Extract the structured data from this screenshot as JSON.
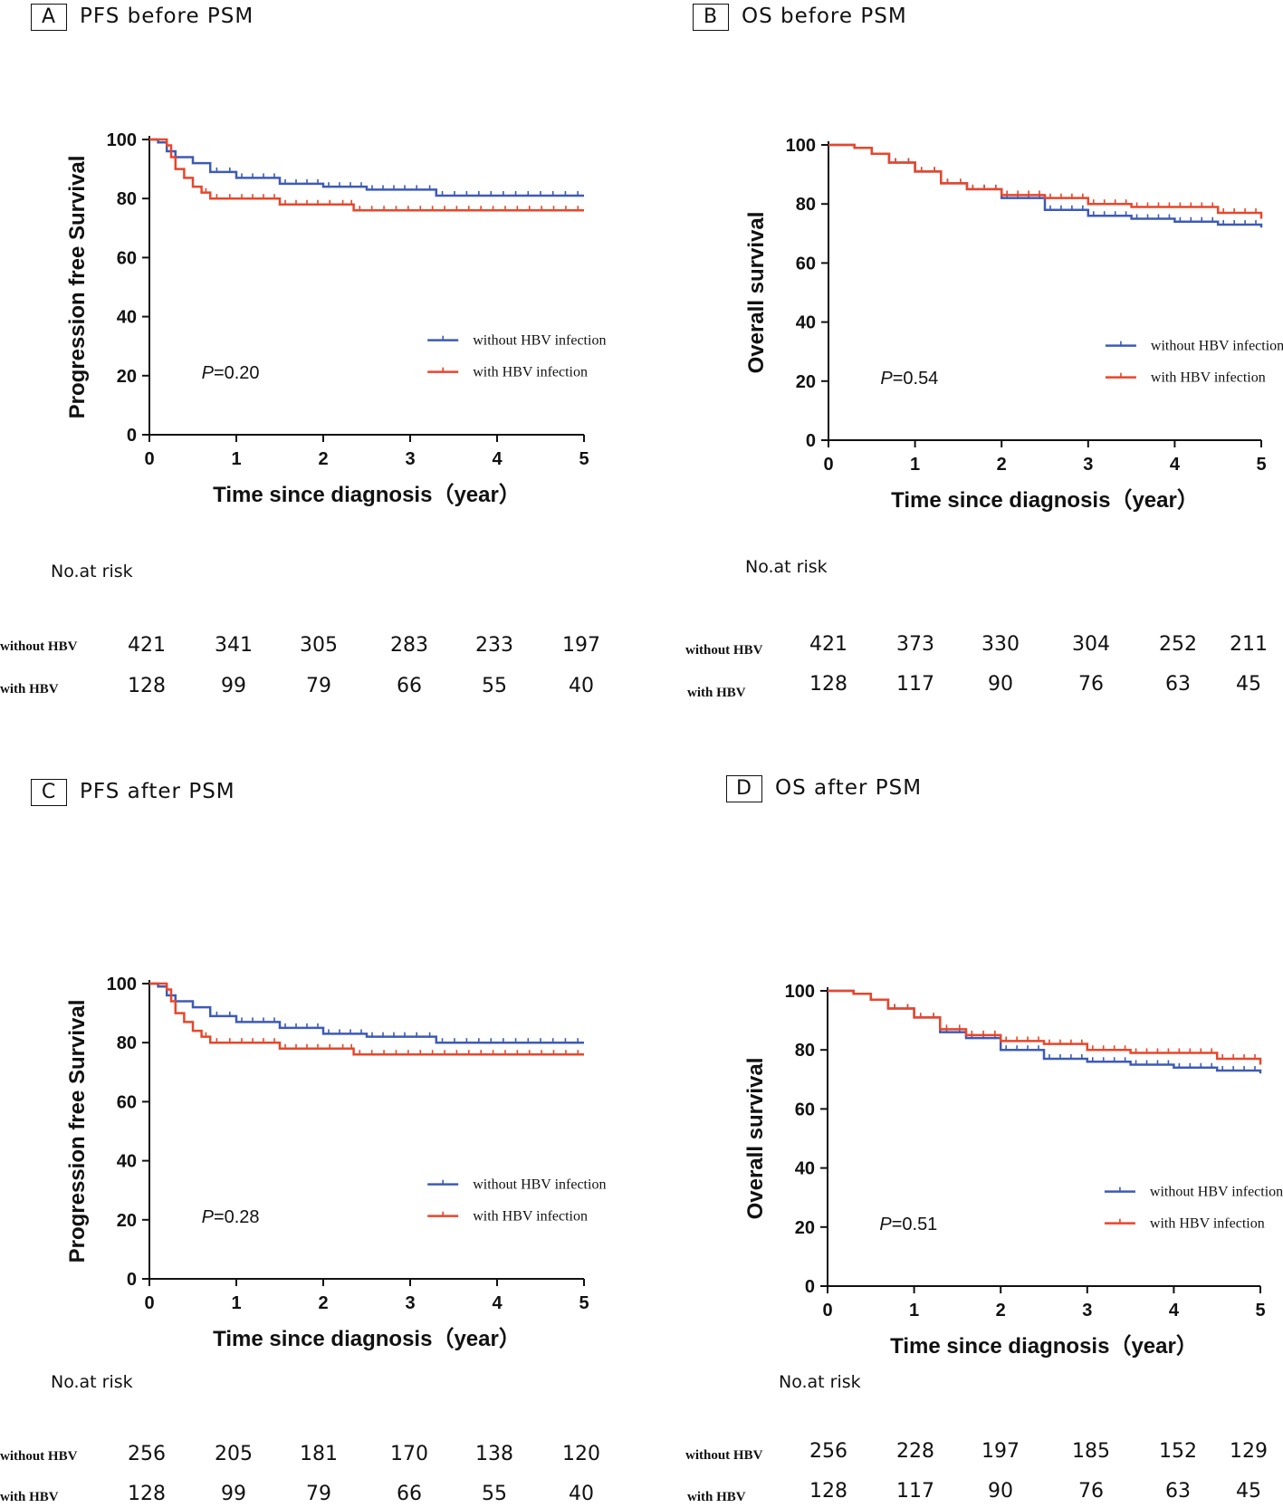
{
  "chart_data": [
    {
      "type": "line",
      "panel": "A",
      "title": "PFS before PSM",
      "xlabel": "Time since diagnosis（year）",
      "ylabel": "Progression free Survival",
      "xlim": [
        0,
        5
      ],
      "ylim": [
        0,
        100
      ],
      "xticks": [
        "0",
        "1",
        "2",
        "3",
        "4",
        "5"
      ],
      "yticks": [
        "0",
        "20",
        "40",
        "60",
        "80",
        "100"
      ],
      "p_prefix": "P",
      "p_value": "=0.20",
      "legend": [
        "without HBV infection",
        "with HBV infection"
      ],
      "series": [
        {
          "name": "without HBV infection",
          "color": "#3d5bb5",
          "x": [
            0,
            0.1,
            0.2,
            0.3,
            0.5,
            0.7,
            1.0,
            1.5,
            2.0,
            2.5,
            3.0,
            3.3,
            4.0,
            5.0
          ],
          "y": [
            100,
            99,
            96,
            94,
            92,
            89,
            87,
            85,
            84,
            83,
            83,
            81,
            81,
            81
          ]
        },
        {
          "name": "with HBV infection",
          "color": "#e8462a",
          "x": [
            0,
            0.2,
            0.25,
            0.3,
            0.4,
            0.5,
            0.6,
            0.7,
            1.0,
            1.5,
            2.0,
            2.3,
            2.35,
            5.0
          ],
          "y": [
            100,
            98,
            94,
            90,
            87,
            84,
            82,
            80,
            80,
            78,
            78,
            78,
            76,
            76
          ]
        }
      ],
      "at_risk": {
        "title": "No.at risk",
        "rows": [
          {
            "label": "without HBV",
            "values": [
              "421",
              "341",
              "305",
              "283",
              "233",
              "197"
            ]
          },
          {
            "label": "with HBV",
            "values": [
              "128",
              "99",
              "79",
              "66",
              "55",
              "40"
            ]
          }
        ]
      }
    },
    {
      "type": "line",
      "panel": "B",
      "title": "OS before PSM",
      "xlabel": "Time since diagnosis（year）",
      "ylabel": "Overall survival",
      "xlim": [
        0,
        5
      ],
      "ylim": [
        0,
        100
      ],
      "xticks": [
        "0",
        "1",
        "2",
        "3",
        "4",
        "5"
      ],
      "yticks": [
        "0",
        "20",
        "40",
        "60",
        "80",
        "100"
      ],
      "p_prefix": "P",
      "p_value": "=0.54",
      "legend": [
        "without HBV infection",
        "with HBV infection"
      ],
      "series": [
        {
          "name": "without HBV infection",
          "color": "#3d5bb5",
          "x": [
            0,
            0.3,
            0.5,
            0.7,
            1.0,
            1.3,
            1.6,
            2.0,
            2.5,
            3.0,
            3.5,
            4.0,
            4.5,
            5.0
          ],
          "y": [
            100,
            99,
            97,
            94,
            91,
            87,
            85,
            82,
            78,
            76,
            75,
            74,
            73,
            72
          ]
        },
        {
          "name": "with HBV infection",
          "color": "#e8462a",
          "x": [
            0,
            0.3,
            0.5,
            0.7,
            1.0,
            1.3,
            1.6,
            2.0,
            2.5,
            3.0,
            3.5,
            4.0,
            4.5,
            5.0
          ],
          "y": [
            100,
            99,
            97,
            94,
            91,
            87,
            85,
            83,
            82,
            80,
            79,
            79,
            77,
            75
          ]
        }
      ],
      "at_risk": {
        "title": "No.at risk",
        "rows": [
          {
            "label": "without HBV",
            "values": [
              "421",
              "373",
              "330",
              "304",
              "252",
              "211"
            ]
          },
          {
            "label": "with  HBV",
            "values": [
              "128",
              "117",
              "90",
              "76",
              "63",
              "45"
            ]
          }
        ]
      }
    },
    {
      "type": "line",
      "panel": "C",
      "title": "PFS  after PSM",
      "xlabel": "Time since diagnosis（year）",
      "ylabel": "Progression free Survival",
      "xlim": [
        0,
        5
      ],
      "ylim": [
        0,
        100
      ],
      "xticks": [
        "0",
        "1",
        "2",
        "3",
        "4",
        "5"
      ],
      "yticks": [
        "0",
        "20",
        "40",
        "60",
        "80",
        "100"
      ],
      "p_prefix": "P",
      "p_value": "=0.28",
      "legend": [
        "without HBV infection",
        "with HBV infection"
      ],
      "series": [
        {
          "name": "without HBV infection",
          "color": "#3d5bb5",
          "x": [
            0,
            0.1,
            0.2,
            0.3,
            0.5,
            0.7,
            1.0,
            1.5,
            2.0,
            2.5,
            3.0,
            3.3,
            4.0,
            5.0
          ],
          "y": [
            100,
            99,
            96,
            94,
            92,
            89,
            87,
            85,
            83,
            82,
            82,
            80,
            80,
            80
          ]
        },
        {
          "name": "with HBV infection",
          "color": "#e8462a",
          "x": [
            0,
            0.2,
            0.25,
            0.3,
            0.4,
            0.5,
            0.6,
            0.7,
            1.0,
            1.5,
            2.0,
            2.3,
            2.35,
            5.0
          ],
          "y": [
            100,
            98,
            94,
            90,
            87,
            84,
            82,
            80,
            80,
            78,
            78,
            78,
            76,
            76
          ]
        }
      ],
      "at_risk": {
        "title": "No.at risk",
        "rows": [
          {
            "label": "without HBV",
            "values": [
              "256",
              "205",
              "181",
              "170",
              "138",
              "120"
            ]
          },
          {
            "label": "with  HBV",
            "values": [
              "128",
              "99",
              "79",
              "66",
              "55",
              "40"
            ]
          }
        ]
      }
    },
    {
      "type": "line",
      "panel": "D",
      "title": "OS   after PSM",
      "xlabel": "Time since diagnosis（year）",
      "ylabel": "Overall survival",
      "xlim": [
        0,
        5
      ],
      "ylim": [
        0,
        100
      ],
      "xticks": [
        "0",
        "1",
        "2",
        "3",
        "4",
        "5"
      ],
      "yticks": [
        "0",
        "20",
        "40",
        "60",
        "80",
        "100"
      ],
      "p_prefix": "P",
      "p_value": "=0.51",
      "legend": [
        "without HBV infection",
        "with HBV infection"
      ],
      "series": [
        {
          "name": "without HBV infection",
          "color": "#3d5bb5",
          "x": [
            0,
            0.3,
            0.5,
            0.7,
            1.0,
            1.3,
            1.6,
            2.0,
            2.5,
            3.0,
            3.5,
            4.0,
            4.5,
            5.0
          ],
          "y": [
            100,
            99,
            97,
            94,
            91,
            86,
            84,
            80,
            77,
            76,
            75,
            74,
            73,
            72
          ]
        },
        {
          "name": "with HBV infection",
          "color": "#e8462a",
          "x": [
            0,
            0.3,
            0.5,
            0.7,
            1.0,
            1.3,
            1.6,
            2.0,
            2.5,
            3.0,
            3.5,
            4.0,
            4.5,
            5.0
          ],
          "y": [
            100,
            99,
            97,
            94,
            91,
            87,
            85,
            83,
            82,
            80,
            79,
            79,
            77,
            75
          ]
        }
      ],
      "at_risk": {
        "title": "No.at risk",
        "rows": [
          {
            "label": "without HBV",
            "values": [
              "256",
              "228",
              "197",
              "185",
              "152",
              "129"
            ]
          },
          {
            "label": "with  HBV",
            "values": [
              "128",
              "117",
              "90",
              "76",
              "63",
              "45"
            ]
          }
        ]
      }
    }
  ]
}
